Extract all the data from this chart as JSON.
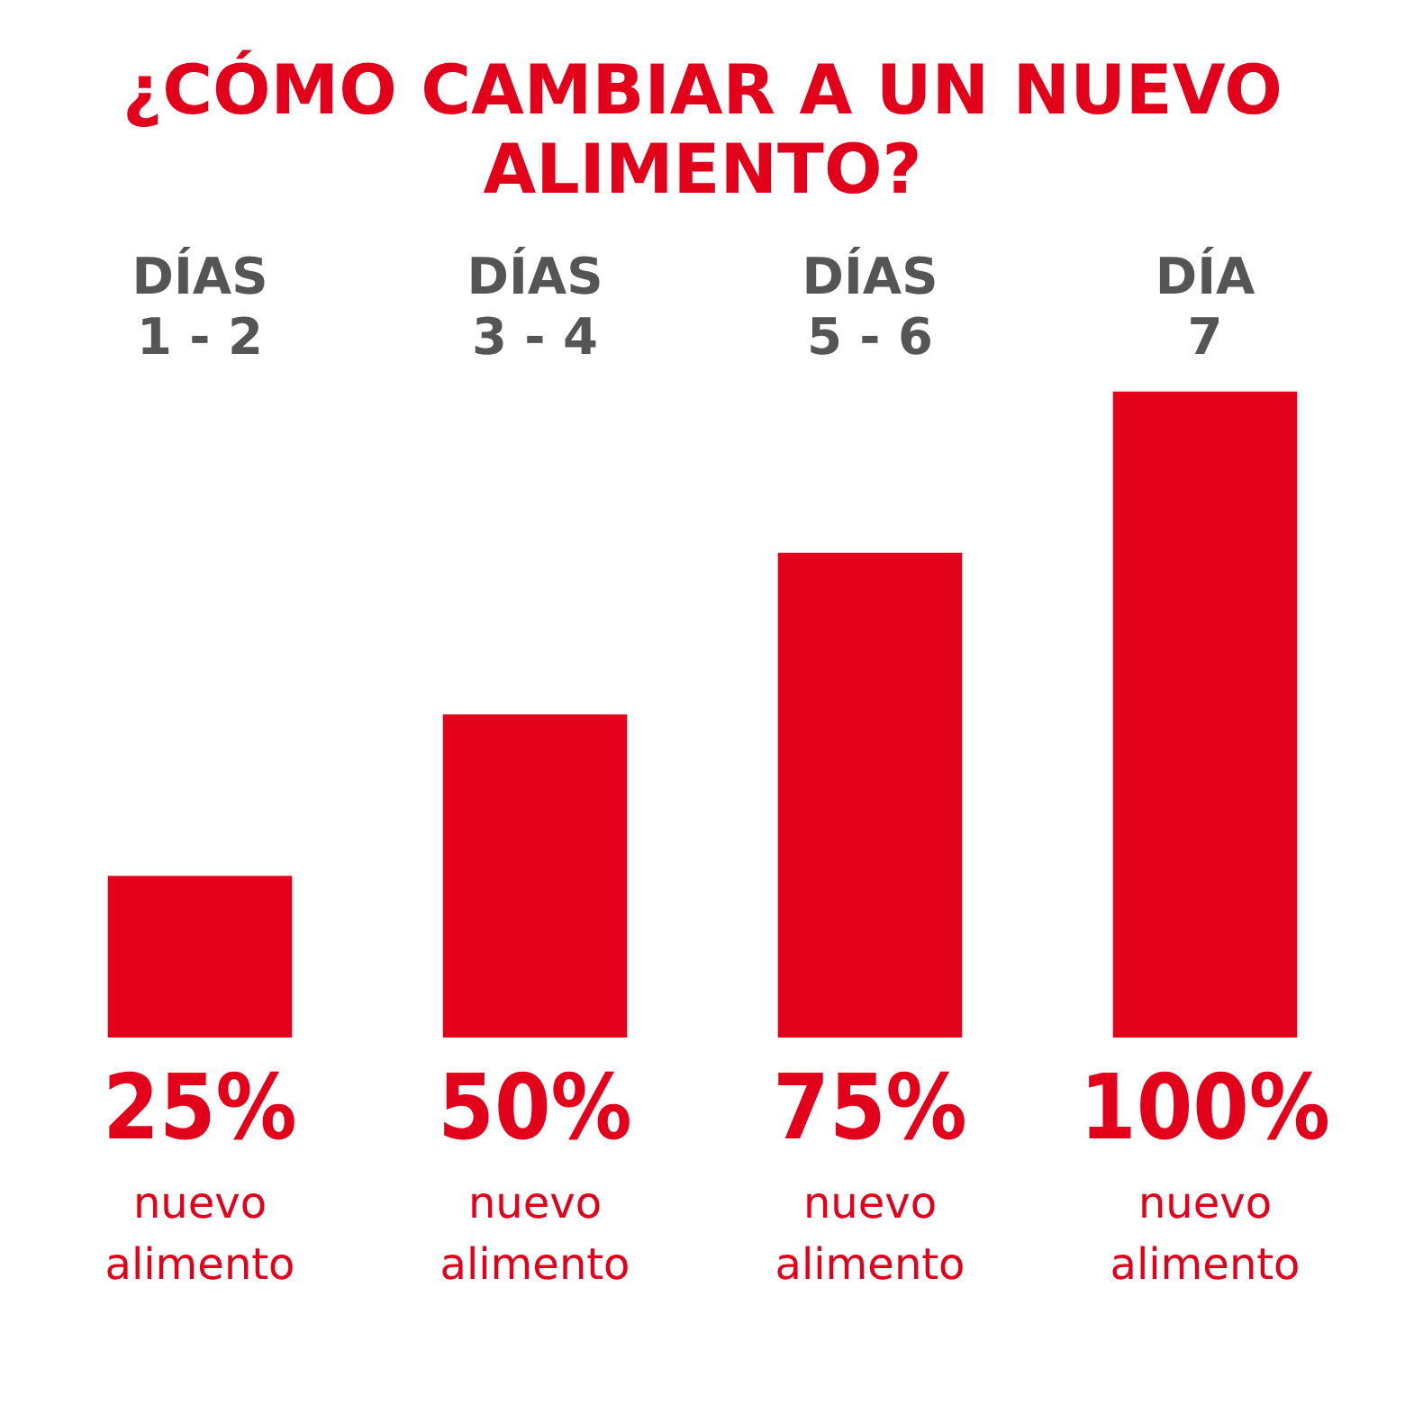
{
  "chart_data": {
    "type": "bar",
    "title": "¿CÓMO CAMBIAR A UN NUEVO ALIMENTO?",
    "categories": [
      "DÍAS 1 - 2",
      "DÍAS 3 - 4",
      "DÍAS 5 - 6",
      "DÍA 7"
    ],
    "series": [
      {
        "name": "nuevo alimento",
        "color": "#e2001a",
        "values": [
          25,
          50,
          75,
          100
        ],
        "value_labels": [
          "25%",
          "50%",
          "75%",
          "100%"
        ]
      }
    ],
    "grid": false,
    "legend": false
  }
}
